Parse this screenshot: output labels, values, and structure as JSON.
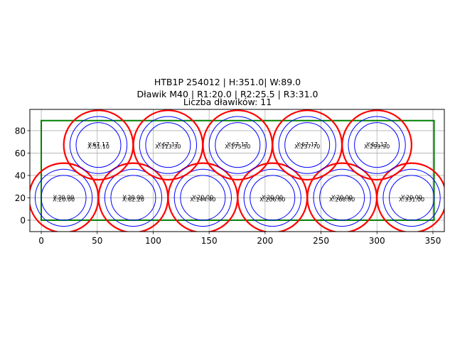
{
  "chart_data": {
    "type": "scatter",
    "title_lines": [
      "HTB1P 254012 | H:351.0| W:89.0",
      "Dławik M40 | R1:20.0 | R2:25.5 | R3:31.0",
      "Liczba dławików: 11"
    ],
    "xlabel": "",
    "ylabel": "",
    "xlim": [
      -10.2,
      360.2
    ],
    "ylim": [
      -10.2,
      99.0
    ],
    "grid": true,
    "legend": null,
    "xticks": [
      0,
      50,
      100,
      150,
      200,
      250,
      300,
      350
    ],
    "yticks": [
      0,
      20,
      40,
      60,
      80
    ],
    "rectangle": {
      "x": 0,
      "y": 0,
      "width": 351.0,
      "height": 89.0,
      "color": "#008000"
    },
    "radii": {
      "R1": 20.0,
      "R2": 25.5,
      "R3": 31.0
    },
    "colors": {
      "R1": "#0000ff",
      "R2": "#0000ff",
      "R3": "#ff0000"
    },
    "circles": [
      {
        "x": 20.0,
        "y": 20.0,
        "label_x": "X:20.00",
        "label_y": "Y:20.00"
      },
      {
        "x": 82.2,
        "y": 20.0,
        "label_x": "X:82.20",
        "label_y": "Y:20.00"
      },
      {
        "x": 144.4,
        "y": 20.0,
        "label_x": "X:144.40",
        "label_y": "Y:20.00"
      },
      {
        "x": 206.6,
        "y": 20.0,
        "label_x": "X:206.60",
        "label_y": "Y:20.00"
      },
      {
        "x": 268.8,
        "y": 20.0,
        "label_x": "X:268.80",
        "label_y": "Y:20.00"
      },
      {
        "x": 331.0,
        "y": 20.0,
        "label_x": "X:331.00",
        "label_y": "Y:20.00"
      },
      {
        "x": 51.1,
        "y": 67.17,
        "label_x": "X:51.10",
        "label_y": "Y:67.17"
      },
      {
        "x": 113.3,
        "y": 67.17,
        "label_x": "X:113.30",
        "label_y": "Y:67.17"
      },
      {
        "x": 175.5,
        "y": 67.17,
        "label_x": "X:175.50",
        "label_y": "Y:67.17"
      },
      {
        "x": 237.7,
        "y": 67.17,
        "label_x": "X:237.70",
        "label_y": "Y:67.17"
      },
      {
        "x": 299.9,
        "y": 67.17,
        "label_x": "X:299.90",
        "label_y": "Y:67.17"
      }
    ]
  }
}
